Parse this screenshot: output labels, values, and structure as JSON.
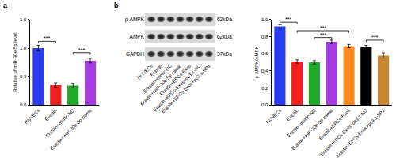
{
  "chart_data": [
    {
      "type": "bar",
      "title": "a",
      "categories": [
        "HUVECs",
        "Erastin",
        "Erastin+mimic NC",
        "Erastin+miR-30e-5p mimic"
      ],
      "values": [
        1.0,
        0.35,
        0.34,
        0.78
      ],
      "errors": [
        0.05,
        0.04,
        0.04,
        0.04
      ],
      "colors": [
        "#2b3cf0",
        "#f02020",
        "#1faa2a",
        "#a43ee0"
      ],
      "y_label": "Relative of miR-30e-5p level",
      "ylim": [
        0,
        1.5
      ],
      "yticks": [
        {
          "value": 0,
          "label": "0.0"
        },
        {
          "value": 0.5,
          "label": "0.5"
        },
        {
          "value": 1,
          "label": "1.0"
        },
        {
          "value": 1.5,
          "label": "1.5"
        }
      ],
      "grid": false,
      "annotations": [
        {
          "from": "HUVECs",
          "to": "Erastin",
          "y": 1.12,
          "text": "***"
        },
        {
          "from": "Erastin+mimic NC",
          "to": "Erastin+miR-30e-5p mimic",
          "y": 0.92,
          "text": "***"
        }
      ]
    },
    {
      "type": "bar",
      "categories": [
        "HUVECs",
        "Erastin",
        "Erastin+mimic NC",
        "Erastin+miR-30e-5p mimic",
        "Erastin+EPCs-Exos",
        "Erastin+EPCs-Exos+pc3.1-NC",
        "Erastin+EPCs-Exos+pc3.1-SP1"
      ],
      "values": [
        0.92,
        0.51,
        0.5,
        0.74,
        0.69,
        0.68,
        0.58
      ],
      "errors": [
        0.02,
        0.02,
        0.02,
        0.02,
        0.02,
        0.02,
        0.03
      ],
      "colors": [
        "#2b3cf0",
        "#f02020",
        "#1faa2a",
        "#a43ee0",
        "#ff8c1a",
        "#000000",
        "#c8862e"
      ],
      "y_label": "p-AMPK/AMPK",
      "ylim": [
        0,
        1.0
      ],
      "yticks": [
        {
          "value": 0,
          "label": "0.0"
        },
        {
          "value": 0.2,
          "label": "0.2"
        },
        {
          "value": 0.4,
          "label": "0.4"
        },
        {
          "value": 0.6,
          "label": "0.6"
        },
        {
          "value": 0.8,
          "label": "0.8"
        },
        {
          "value": 1.0,
          "label": "1.0"
        }
      ],
      "grid": false,
      "annotations": [
        {
          "from": "HUVECs",
          "to": "Erastin",
          "y": 0.97,
          "text": "***"
        },
        {
          "from": "Erastin",
          "to": "Erastin+EPCs-Exos",
          "y": 0.87,
          "text": "***"
        },
        {
          "from": "Erastin+mimic NC",
          "to": "Erastin+miR-30e-5p mimic",
          "y": 0.79,
          "text": "***"
        },
        {
          "from": "Erastin+EPCs-Exos+pc3.1-NC",
          "to": "Erastin+EPCs-Exos+pc3.1-SP1",
          "y": 0.76,
          "text": "***"
        }
      ]
    }
  ],
  "blot": {
    "panel": "b",
    "rows": [
      {
        "label": "p-AMPK",
        "size": "62kDa"
      },
      {
        "label": "AMPK",
        "size": "62kDa"
      },
      {
        "label": "GAPDH",
        "size": "37kDa"
      }
    ],
    "lanes": [
      "HUVECs",
      "Erastin",
      "Erastin+mimic NC",
      "Erastin+miR-30e-5p mimic",
      "Erastin+EPCs-Exos",
      "Erastin+EPCs-Exos+pc3.1-NC",
      "Erastin+EPCs-Exos+pc3.1-SP1"
    ]
  }
}
